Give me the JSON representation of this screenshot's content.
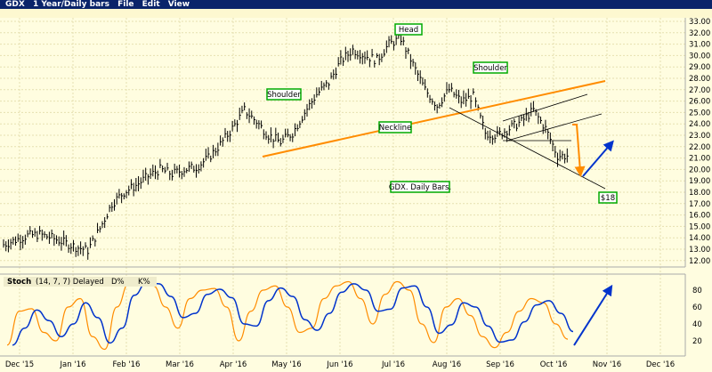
{
  "window": {
    "symbol": "GDX",
    "period": "1 Year/Daily bars",
    "menu": [
      "File",
      "Edit",
      "View"
    ]
  },
  "stoch_legend": {
    "name": "Stoch",
    "params": "(14, 7, 7) Delayed",
    "d": "D%",
    "k": "K%"
  },
  "colors": {
    "bars": "#000000",
    "neckline": "#ff8c00",
    "k": "#ff8c00",
    "d": "#0033cc",
    "arrow_blue": "#0033cc",
    "box_border": "#00aa00"
  },
  "chart_data": {
    "type": "bar",
    "title": "GDX 1 Year/Daily bars",
    "price_ticks": [
      "33.00",
      "32.00",
      "31.00",
      "30.00",
      "29.00",
      "28.00",
      "27.00",
      "26.00",
      "25.00",
      "24.00",
      "23.00",
      "22.00",
      "21.00",
      "20.00",
      "19.00",
      "18.00",
      "17.00",
      "16.00",
      "15.00",
      "14.00",
      "13.00",
      "12.00"
    ],
    "ylim": [
      12,
      33
    ],
    "x_ticks": [
      "Dec '15",
      "Jan '16",
      "Feb '16",
      "Mar '16",
      "Apr '16",
      "May '16",
      "Jun '16",
      "Jul '16",
      "Aug '16",
      "Sep '16",
      "Oct '16",
      "Nov '16",
      "Dec '16"
    ],
    "weekly_close": [
      13.4,
      13.8,
      14.2,
      14.3,
      14.0,
      13.6,
      13.2,
      12.9,
      14.8,
      17.0,
      18.0,
      18.6,
      19.4,
      20.0,
      19.6,
      20.0,
      20.2,
      21.0,
      22.2,
      23.6,
      25.2,
      24.2,
      23.0,
      22.4,
      23.2,
      25.0,
      26.6,
      27.6,
      29.5,
      30.5,
      30.0,
      29.6,
      31.0,
      31.5,
      29.2,
      27.0,
      25.6,
      27.0,
      26.0,
      26.4,
      23.2,
      23.0,
      23.6,
      24.2,
      25.2,
      23.6,
      21.2
    ],
    "stoch_ticks": [
      "80",
      "60",
      "40",
      "20"
    ],
    "stoch_k": [
      15,
      55,
      58,
      30,
      20,
      60,
      70,
      25,
      10,
      60,
      88,
      90,
      85,
      60,
      35,
      70,
      80,
      82,
      60,
      20,
      55,
      80,
      85,
      60,
      30,
      35,
      70,
      85,
      90,
      70,
      40,
      75,
      90,
      80,
      40,
      18,
      60,
      70,
      50,
      25,
      12,
      30,
      55,
      70,
      65,
      40,
      22
    ],
    "annotations": {
      "head": "Head",
      "left_shoulder": "Shoulder",
      "right_shoulder": "Shoulder",
      "neckline": "Neckline",
      "caption": "GDX. Daily Bars.",
      "target": "$18"
    }
  }
}
